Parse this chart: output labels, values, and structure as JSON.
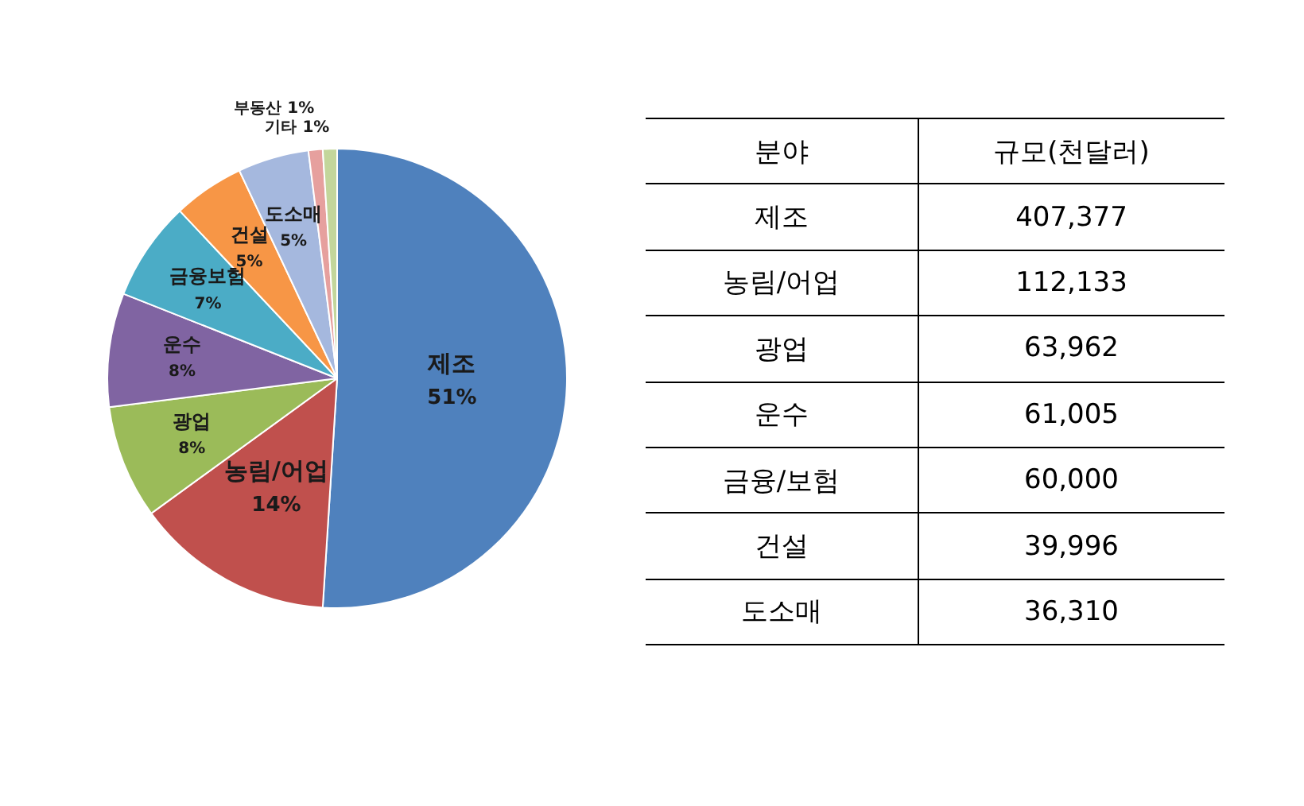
{
  "chart_data": [
    {
      "type": "pie",
      "categories": [
        "제조",
        "농림/어업",
        "광업",
        "운수",
        "금융보험",
        "건설",
        "도소매",
        "부동산",
        "기타"
      ],
      "values": [
        51,
        14,
        8,
        8,
        7,
        5,
        5,
        1,
        1
      ],
      "value_labels": [
        "51%",
        "14%",
        "8%",
        "8%",
        "7%",
        "5%",
        "5%",
        "1%",
        "1%"
      ],
      "colors": [
        "#4f81bd",
        "#c0504d",
        "#9bbb59",
        "#8064a2",
        "#4bacc6",
        "#f79646",
        "#a5b8de",
        "#e6a09e",
        "#c3d69b"
      ]
    },
    {
      "type": "other",
      "xlabel": "분야",
      "ylabel": "규모(천달러)",
      "categories": [
        "제조",
        "농림/어업",
        "광업",
        "운수",
        "금융/보험",
        "건설",
        "도소매"
      ],
      "values": [
        407377,
        112133,
        63962,
        61005,
        60000,
        39996,
        36310
      ],
      "value_labels": [
        "407,377",
        "112,133",
        "63,962",
        "61,005",
        "60,000",
        "39,996",
        "36,310"
      ]
    }
  ]
}
